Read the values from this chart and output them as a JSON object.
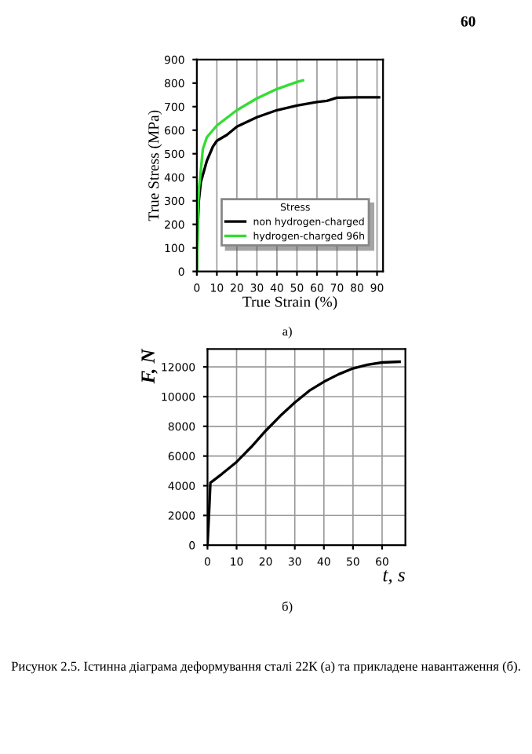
{
  "chart_data": [
    {
      "type": "line",
      "xlabel": "True Strain (%)",
      "ylabel": "True Stress (MPa)",
      "legend_title": "Stress",
      "annotations": [
        "60",
        "а)"
      ],
      "xlim": [
        0,
        93
      ],
      "xticks": [
        0,
        10,
        20,
        30,
        40,
        50,
        60,
        70,
        80,
        90
      ],
      "ylim": [
        0,
        900
      ],
      "yticks": [
        0,
        100,
        200,
        300,
        400,
        500,
        600,
        700,
        800,
        900
      ],
      "grid": "x",
      "legend": "bottom right",
      "series": [
        {
          "name": "non hydrogen-charged",
          "color": "#000000",
          "x": [
            0,
            0.5,
            1,
            2,
            5,
            8,
            10,
            15,
            20,
            30,
            40,
            50,
            60,
            65,
            70,
            80,
            91
          ],
          "values": [
            0,
            200,
            300,
            380,
            470,
            530,
            555,
            580,
            615,
            655,
            685,
            705,
            720,
            725,
            738,
            740,
            740
          ]
        },
        {
          "name": "hydrogen-charged 96h",
          "color": "#33dd33",
          "x": [
            0,
            0.5,
            1,
            2,
            3,
            5,
            10,
            20,
            30,
            40,
            50,
            53
          ],
          "values": [
            0,
            250,
            350,
            430,
            520,
            570,
            620,
            685,
            735,
            775,
            805,
            812
          ]
        }
      ]
    },
    {
      "type": "line",
      "xlabel": "t, s",
      "ylabel": "F, N",
      "annotations": [
        "б)",
        "Рисунок 2.5. Істинна діаграма деформування сталі 22К (а) та прикладене навантаження (б)."
      ],
      "xlim": [
        0,
        68
      ],
      "xticks": [
        0,
        10,
        20,
        30,
        40,
        50,
        60
      ],
      "ylim": [
        0,
        13200
      ],
      "yticks": [
        0,
        2000,
        4000,
        6000,
        8000,
        10000,
        12000
      ],
      "grid": true,
      "series": [
        {
          "color": "#000000",
          "x": [
            0,
            0.5,
            1,
            2,
            5,
            10,
            15,
            20,
            25,
            30,
            35,
            40,
            45,
            50,
            55,
            60,
            66
          ],
          "values": [
            0,
            2000,
            4200,
            4350,
            4800,
            5600,
            6600,
            7700,
            8700,
            9600,
            10400,
            11000,
            11500,
            11900,
            12150,
            12300,
            12350
          ]
        }
      ]
    }
  ]
}
